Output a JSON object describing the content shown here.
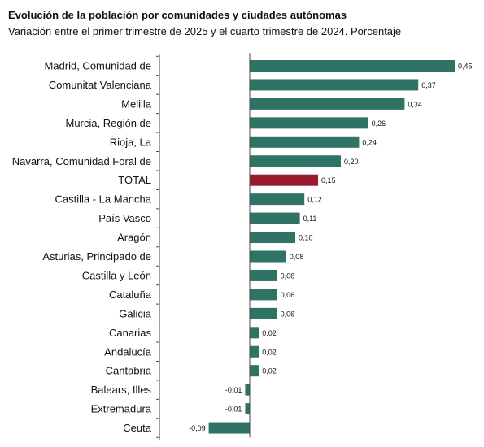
{
  "chart_data": {
    "type": "bar",
    "orientation": "horizontal",
    "title": "Evolución de la población por comunidades y ciudades autónomas",
    "subtitle": "Variación entre el primer trimestre de 2025 y el cuarto trimestre de 2024. Porcentaje",
    "categories": [
      "Madrid, Comunidad de",
      "Comunitat Valenciana",
      "Melilla",
      "Murcia, Región de",
      "Rioja, La",
      "Navarra, Comunidad Foral de",
      "TOTAL",
      "Castilla - La Mancha",
      "País Vasco",
      "Aragón",
      "Asturias, Principado de",
      "Castilla y León",
      "Cataluña",
      "Galicia",
      "Canarias",
      "Andalucía",
      "Cantabria",
      "Balears, Illes",
      "Extremadura",
      "Ceuta"
    ],
    "values": [
      0.45,
      0.37,
      0.34,
      0.26,
      0.24,
      0.2,
      0.15,
      0.12,
      0.11,
      0.1,
      0.08,
      0.06,
      0.06,
      0.06,
      0.02,
      0.02,
      0.02,
      -0.01,
      -0.01,
      -0.09
    ],
    "value_labels": [
      "0,45",
      "0,37",
      "0,34",
      "0,26",
      "0,24",
      "0,20",
      "0,15",
      "0,12",
      "0,11",
      "0,10",
      "0,08",
      "0,06",
      "0,06",
      "0,06",
      "0,02",
      "0,02",
      "0,02",
      "-0,01",
      "-0,01",
      "-0,09"
    ],
    "highlight_category": "TOTAL",
    "colors": {
      "bar": "#2f7366",
      "highlight": "#9b1b2e",
      "axis": "#444444"
    },
    "xlim": [
      -0.09,
      0.45
    ],
    "grid": false,
    "legend": "none"
  }
}
